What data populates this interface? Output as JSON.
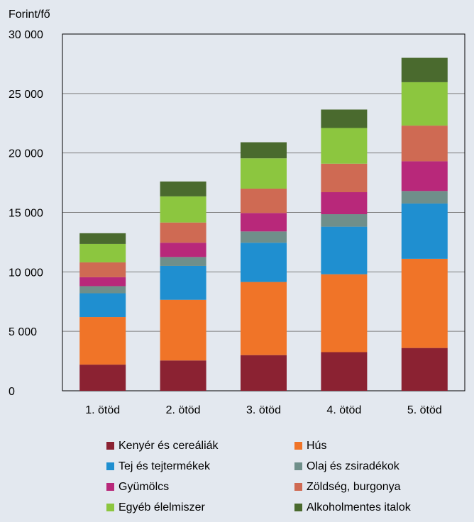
{
  "chart_data": {
    "type": "bar",
    "stacked": true,
    "title": "",
    "ylabel": "Forint/fő",
    "xlabel": "",
    "ylim": [
      0,
      30000
    ],
    "yticks": [
      0,
      5000,
      10000,
      15000,
      20000,
      25000,
      30000
    ],
    "ytick_labels": [
      "0",
      "5 000",
      "10 000",
      "15 000",
      "20 000",
      "25 000",
      "30 000"
    ],
    "grid": true,
    "legend_position": "bottom",
    "categories": [
      "1. ötöd",
      "2. ötöd",
      "3. ötöd",
      "4. ötöd",
      "5. ötöd"
    ],
    "series": [
      {
        "name": "Kenyér és cereáliák",
        "color": "#8b2232",
        "values": [
          2200,
          2550,
          3000,
          3250,
          3600
        ]
      },
      {
        "name": "Hús",
        "color": "#f07428",
        "values": [
          4000,
          5100,
          6150,
          6550,
          7500
        ]
      },
      {
        "name": "Tej és tejtermékek",
        "color": "#1f8fd0",
        "values": [
          2000,
          2850,
          3300,
          4000,
          4650
        ]
      },
      {
        "name": "Olaj és zsiradékok",
        "color": "#6f8f8a",
        "values": [
          600,
          750,
          950,
          1050,
          1050
        ]
      },
      {
        "name": "Gyümölcs",
        "color": "#b8287a",
        "values": [
          750,
          1200,
          1550,
          1850,
          2500
        ]
      },
      {
        "name": "Zöldség, burgonya",
        "color": "#cf6a53",
        "values": [
          1250,
          1700,
          2050,
          2400,
          3000
        ]
      },
      {
        "name": "Egyéb élelmiszer",
        "color": "#8cc63f",
        "values": [
          1550,
          2200,
          2550,
          3000,
          3650
        ]
      },
      {
        "name": "Alkoholmentes italok",
        "color": "#4a6a2e",
        "values": [
          900,
          1250,
          1350,
          1550,
          2050
        ]
      }
    ]
  }
}
